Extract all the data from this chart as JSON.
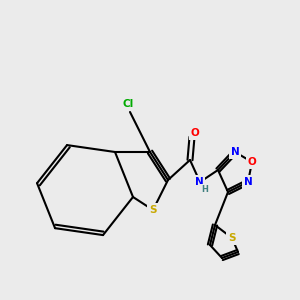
{
  "background_color": "#ebebeb",
  "bond_color": "#000000",
  "bond_lw": 1.5,
  "atom_colors": {
    "S": "#c8a800",
    "O": "#ff0000",
    "N": "#0000ff",
    "Cl": "#00aa00",
    "C": "#000000",
    "H": "#408080"
  },
  "font_size": 7.5,
  "font_size_small": 6.5
}
